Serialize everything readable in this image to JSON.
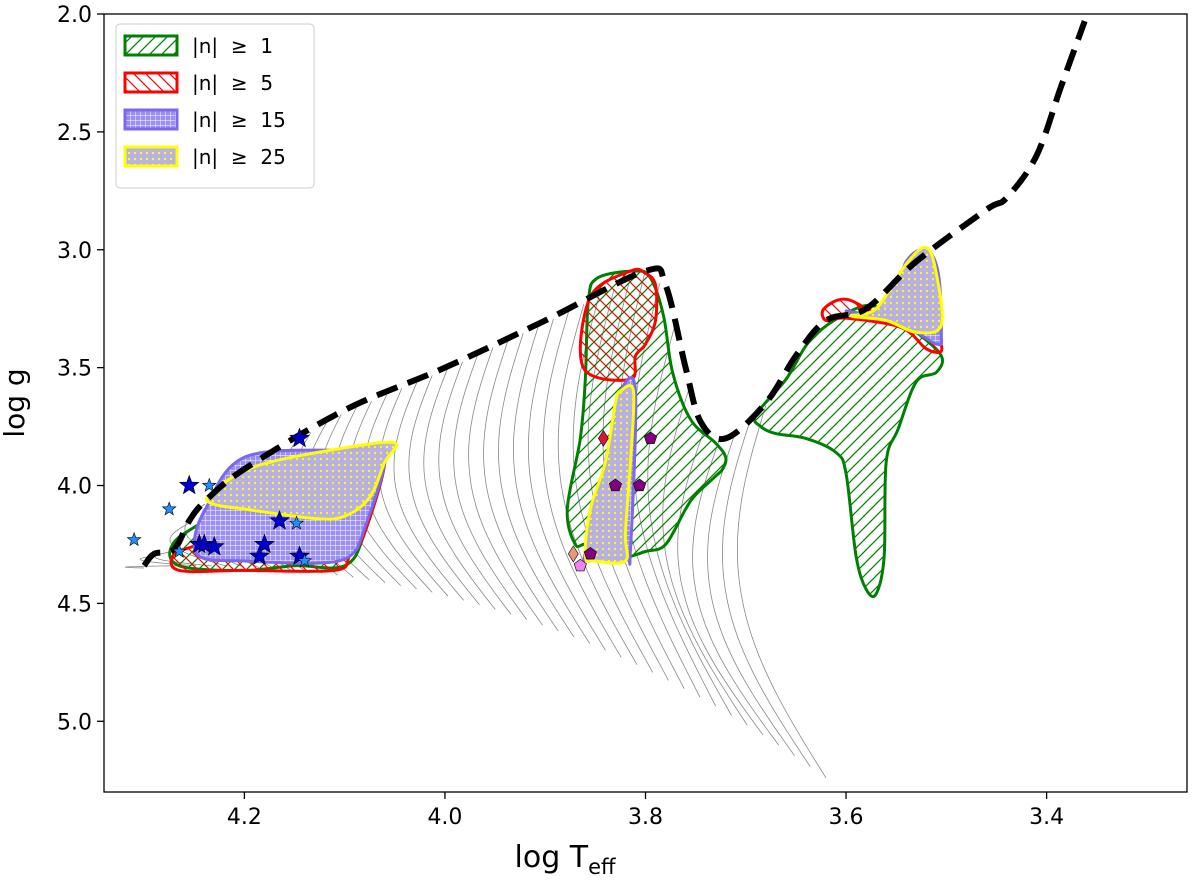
{
  "chart_data": {
    "type": "scatter",
    "title": "",
    "xlabel_main": "log T",
    "xlabel_sub": "eff",
    "ylabel": "log g",
    "xlim": [
      4.34,
      3.26
    ],
    "ylim": [
      5.3,
      2.0
    ],
    "x_ticks": [
      {
        "value": 4.2,
        "label": "4.2"
      },
      {
        "value": 4.0,
        "label": "4.0"
      },
      {
        "value": 3.8,
        "label": "3.8"
      },
      {
        "value": 3.6,
        "label": "3.6"
      },
      {
        "value": 3.4,
        "label": "3.4"
      }
    ],
    "y_ticks": [
      {
        "value": 2.0,
        "label": "2.0"
      },
      {
        "value": 2.5,
        "label": "2.5"
      },
      {
        "value": 3.0,
        "label": "3.0"
      },
      {
        "value": 3.5,
        "label": "3.5"
      },
      {
        "value": 4.0,
        "label": "4.0"
      },
      {
        "value": 4.5,
        "label": "4.5"
      },
      {
        "value": 5.0,
        "label": "5.0"
      }
    ],
    "legend": {
      "placement": "top-left",
      "entries": [
        {
          "label": "|n|  ≥  1",
          "edge": "#008000",
          "pattern": "diag"
        },
        {
          "label": "|n|  ≥  5",
          "edge": "#ff0000",
          "pattern": "backdiag"
        },
        {
          "label": "|n|  ≥  15",
          "edge": "#7b68ee",
          "pattern": "grid"
        },
        {
          "label": "|n|  ≥  25",
          "edge": "#ffff00",
          "pattern": "dots"
        }
      ]
    },
    "boundary_line": {
      "name": "dashed boundary",
      "color": "#000000",
      "points": [
        [
          4.3,
          4.34
        ],
        [
          4.29,
          4.29
        ],
        [
          4.27,
          4.27
        ],
        [
          4.255,
          4.15
        ],
        [
          4.24,
          4.07
        ],
        [
          4.2,
          3.93
        ],
        [
          4.1,
          3.68
        ],
        [
          4.0,
          3.5
        ],
        [
          3.9,
          3.3
        ],
        [
          3.8,
          3.09
        ],
        [
          3.78,
          3.15
        ],
        [
          3.76,
          3.5
        ],
        [
          3.745,
          3.73
        ],
        [
          3.72,
          3.8
        ],
        [
          3.68,
          3.65
        ],
        [
          3.65,
          3.45
        ],
        [
          3.62,
          3.3
        ],
        [
          3.58,
          3.25
        ],
        [
          3.53,
          3.05
        ],
        [
          3.46,
          2.83
        ],
        [
          3.44,
          2.78
        ],
        [
          3.41,
          2.6
        ],
        [
          3.385,
          2.3
        ],
        [
          3.362,
          2.03
        ]
      ]
    },
    "regions": [
      {
        "name": "|n| ≥ 1 cool region",
        "level": 1,
        "edge": "#008000",
        "pattern": "diag",
        "points": [
          [
            3.685,
            3.75
          ],
          [
            3.69,
            3.7
          ],
          [
            3.66,
            3.55
          ],
          [
            3.635,
            3.38
          ],
          [
            3.6,
            3.27
          ],
          [
            3.57,
            3.24
          ],
          [
            3.53,
            3.35
          ],
          [
            3.505,
            3.45
          ],
          [
            3.51,
            3.52
          ],
          [
            3.53,
            3.56
          ],
          [
            3.548,
            3.76
          ],
          [
            3.56,
            3.9
          ],
          [
            3.562,
            4.3
          ],
          [
            3.57,
            4.46
          ],
          [
            3.58,
            4.44
          ],
          [
            3.59,
            4.3
          ],
          [
            3.6,
            3.95
          ],
          [
            3.61,
            3.86
          ],
          [
            3.64,
            3.8
          ],
          [
            3.67,
            3.78
          ]
        ]
      },
      {
        "name": "|n| ≥ 1 delta scuti region",
        "level": 1,
        "edge": "#008000",
        "pattern": "diag",
        "points": [
          [
            3.878,
            4.1
          ],
          [
            3.865,
            3.8
          ],
          [
            3.86,
            3.55
          ],
          [
            3.857,
            3.22
          ],
          [
            3.848,
            3.12
          ],
          [
            3.81,
            3.09
          ],
          [
            3.795,
            3.12
          ],
          [
            3.782,
            3.28
          ],
          [
            3.773,
            3.52
          ],
          [
            3.755,
            3.72
          ],
          [
            3.73,
            3.82
          ],
          [
            3.72,
            3.88
          ],
          [
            3.723,
            3.93
          ],
          [
            3.73,
            3.96
          ],
          [
            3.75,
            4.04
          ],
          [
            3.76,
            4.1
          ],
          [
            3.78,
            4.25
          ],
          [
            3.8,
            4.28
          ],
          [
            3.83,
            4.31
          ],
          [
            3.858,
            4.25
          ],
          [
            3.87,
            4.25
          ]
        ]
      },
      {
        "name": "|n| ≥ 1 hot region",
        "level": 1,
        "edge": "#008000",
        "pattern": "diag",
        "points": [
          [
            4.265,
            4.34
          ],
          [
            4.27,
            4.24
          ],
          [
            4.225,
            4.1
          ],
          [
            4.19,
            3.89
          ],
          [
            4.1,
            3.87
          ],
          [
            4.06,
            3.86
          ],
          [
            4.08,
            4.2
          ],
          [
            4.1,
            4.34
          ],
          [
            4.15,
            4.34
          ],
          [
            4.2,
            4.36
          ]
        ]
      },
      {
        "name": "|n| ≥ 5 hot region",
        "level": 5,
        "edge": "#ff0000",
        "pattern": "backdiag",
        "points": [
          [
            4.265,
            4.36
          ],
          [
            4.27,
            4.29
          ],
          [
            4.245,
            4.24
          ],
          [
            4.238,
            4.12
          ],
          [
            4.19,
            3.88
          ],
          [
            4.1,
            3.86
          ],
          [
            4.06,
            3.86
          ],
          [
            4.08,
            4.2
          ],
          [
            4.095,
            4.3
          ],
          [
            4.11,
            4.36
          ],
          [
            4.2,
            4.36
          ]
        ]
      },
      {
        "name": "|n| ≥ 5 delta scuti upper region",
        "level": 5,
        "edge": "#ff0000",
        "pattern": "backdiag",
        "points": [
          [
            3.862,
            3.5
          ],
          [
            3.855,
            3.2
          ],
          [
            3.815,
            3.09
          ],
          [
            3.8,
            3.1
          ],
          [
            3.79,
            3.15
          ],
          [
            3.79,
            3.3
          ],
          [
            3.8,
            3.4
          ],
          [
            3.81,
            3.45
          ],
          [
            3.815,
            3.55
          ]
        ]
      },
      {
        "name": "|n| ≥ 5 cool region",
        "level": 5,
        "edge": "#ff0000",
        "pattern": "backdiag",
        "points": [
          [
            3.622,
            3.25
          ],
          [
            3.6,
            3.21
          ],
          [
            3.565,
            3.28
          ],
          [
            3.53,
            3.3
          ],
          [
            3.51,
            3.36
          ],
          [
            3.505,
            3.43
          ],
          [
            3.52,
            3.42
          ],
          [
            3.545,
            3.33
          ],
          [
            3.6,
            3.29
          ],
          [
            3.62,
            3.3
          ]
        ]
      },
      {
        "name": "|n| ≥ 15 hot region",
        "level": 15,
        "edge": "#7b68ee",
        "pattern": "grid",
        "points": [
          [
            4.25,
            4.25
          ],
          [
            4.24,
            4.11
          ],
          [
            4.2,
            3.88
          ],
          [
            4.1,
            3.85
          ],
          [
            4.06,
            3.86
          ],
          [
            4.08,
            4.18
          ],
          [
            4.095,
            4.3
          ],
          [
            4.13,
            4.33
          ],
          [
            4.2,
            4.32
          ],
          [
            4.24,
            4.31
          ]
        ]
      },
      {
        "name": "|n| ≥ 15 delta scuti region",
        "level": 15,
        "edge": "#7b68ee",
        "pattern": "grid",
        "points": [
          [
            3.835,
            3.8
          ],
          [
            3.825,
            3.6
          ],
          [
            3.81,
            3.6
          ],
          [
            3.815,
            4.27
          ],
          [
            3.82,
            4.31
          ],
          [
            3.855,
            4.3
          ],
          [
            3.86,
            4.28
          ]
        ]
      },
      {
        "name": "|n| ≥ 15 cool region",
        "level": 15,
        "edge": "#7b68ee",
        "pattern": "grid",
        "points": [
          [
            3.6,
            3.26
          ],
          [
            3.56,
            3.26
          ],
          [
            3.54,
            3.05
          ],
          [
            3.52,
            3.0
          ],
          [
            3.508,
            3.1
          ],
          [
            3.505,
            3.35
          ],
          [
            3.51,
            3.4
          ],
          [
            3.55,
            3.3
          ]
        ]
      },
      {
        "name": "|n| ≥ 25 hot region",
        "level": 25,
        "edge": "#ffff00",
        "pattern": "dots",
        "points": [
          [
            4.235,
            4.04
          ],
          [
            4.19,
            3.92
          ],
          [
            4.1,
            3.84
          ],
          [
            4.05,
            3.82
          ],
          [
            4.06,
            3.9
          ],
          [
            4.075,
            4.05
          ],
          [
            4.1,
            4.13
          ],
          [
            4.13,
            4.14
          ],
          [
            4.2,
            4.1
          ],
          [
            4.23,
            4.08
          ]
        ]
      },
      {
        "name": "|n| ≥ 25 delta scuti region",
        "level": 25,
        "edge": "#ffff00",
        "pattern": "dots",
        "points": [
          [
            3.86,
            4.3
          ],
          [
            3.855,
            4.1
          ],
          [
            3.84,
            3.9
          ],
          [
            3.83,
            3.65
          ],
          [
            3.825,
            3.6
          ],
          [
            3.812,
            3.6
          ],
          [
            3.815,
            3.9
          ],
          [
            3.82,
            4.2
          ],
          [
            3.82,
            4.32
          ],
          [
            3.85,
            4.32
          ]
        ]
      },
      {
        "name": "|n| ≥ 25 cool region",
        "level": 25,
        "edge": "#ffff00",
        "pattern": "dots",
        "points": [
          [
            3.595,
            3.28
          ],
          [
            3.57,
            3.25
          ],
          [
            3.54,
            3.06
          ],
          [
            3.52,
            2.99
          ],
          [
            3.51,
            3.1
          ],
          [
            3.505,
            3.32
          ],
          [
            3.53,
            3.35
          ],
          [
            3.56,
            3.3
          ]
        ]
      }
    ],
    "stars": [
      {
        "x": 4.255,
        "y": 4.0,
        "color": "#0000cd",
        "size": "large"
      },
      {
        "x": 4.145,
        "y": 3.8,
        "color": "#0000cd",
        "size": "large"
      },
      {
        "x": 4.245,
        "y": 4.25,
        "color": "#0000cd",
        "size": "large"
      },
      {
        "x": 4.24,
        "y": 4.25,
        "color": "#0000cd",
        "size": "large"
      },
      {
        "x": 4.23,
        "y": 4.26,
        "color": "#0000cd",
        "size": "large"
      },
      {
        "x": 4.165,
        "y": 4.15,
        "color": "#0000cd",
        "size": "large"
      },
      {
        "x": 4.18,
        "y": 4.25,
        "color": "#0000cd",
        "size": "large"
      },
      {
        "x": 4.185,
        "y": 4.3,
        "color": "#0000cd",
        "size": "large"
      },
      {
        "x": 4.145,
        "y": 4.3,
        "color": "#0000cd",
        "size": "large"
      },
      {
        "x": 4.31,
        "y": 4.23,
        "color": "#1e90ff",
        "size": "small"
      },
      {
        "x": 4.275,
        "y": 4.1,
        "color": "#1e90ff",
        "size": "small"
      },
      {
        "x": 4.265,
        "y": 4.28,
        "color": "#1e90ff",
        "size": "small"
      },
      {
        "x": 4.235,
        "y": 4.0,
        "color": "#1e90ff",
        "size": "small"
      },
      {
        "x": 4.148,
        "y": 4.16,
        "color": "#1e90ff",
        "size": "small"
      },
      {
        "x": 4.14,
        "y": 4.32,
        "color": "#1e90ff",
        "size": "small"
      }
    ],
    "diamonds": [
      {
        "x": 3.842,
        "y": 3.8,
        "color": "#dc143c"
      },
      {
        "x": 3.872,
        "y": 4.29,
        "color": "#e9967a"
      }
    ],
    "pentagons": [
      {
        "x": 3.795,
        "y": 3.8,
        "color": "#800080"
      },
      {
        "x": 3.83,
        "y": 4.0,
        "color": "#800080"
      },
      {
        "x": 3.806,
        "y": 4.0,
        "color": "#800080"
      },
      {
        "x": 3.855,
        "y": 4.29,
        "color": "#800080"
      },
      {
        "x": 3.865,
        "y": 4.34,
        "color": "#ee82ee"
      }
    ],
    "track_count": 42
  }
}
